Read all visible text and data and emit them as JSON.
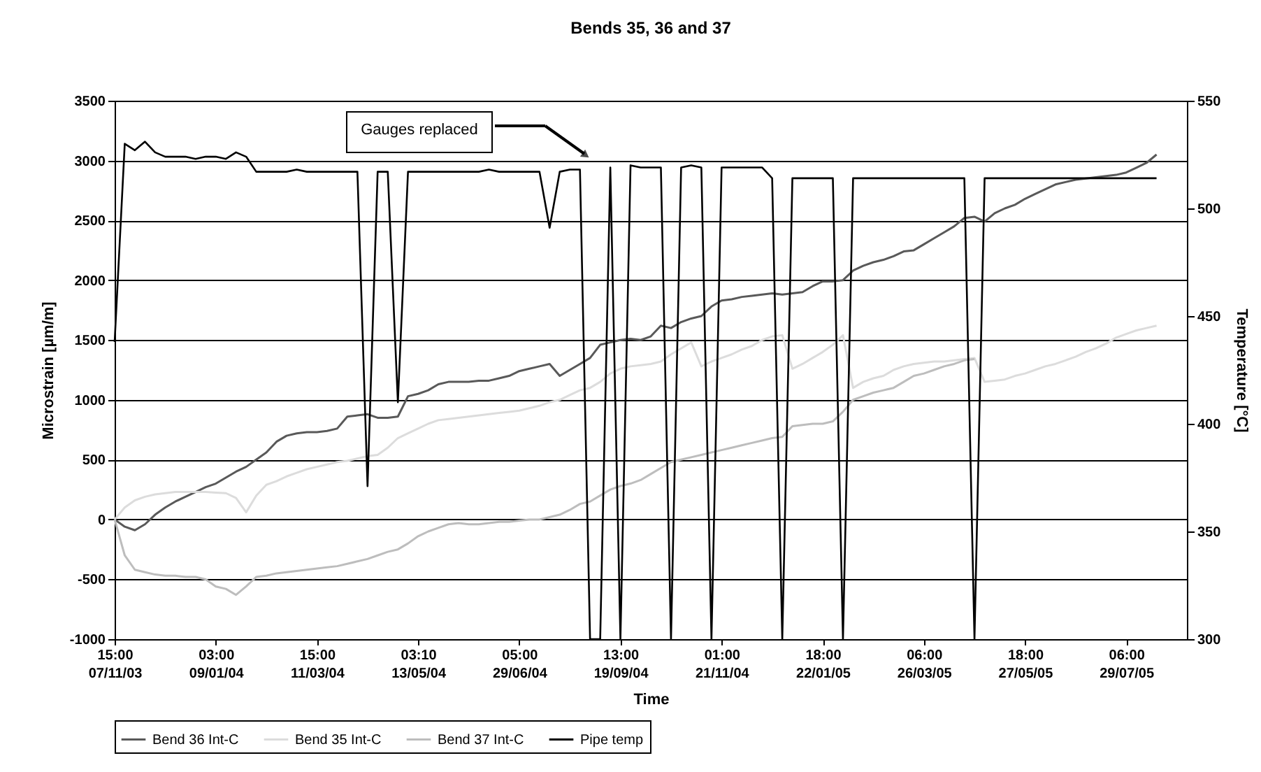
{
  "chart_data": {
    "type": "line",
    "title": "Bends 35, 36 and 37",
    "xlabel": "Time",
    "ylabel": "Microstrain [µm/m]",
    "y2label": "Temperature [°C]",
    "annotations": [
      "Gauges replaced"
    ],
    "categories": [
      "15:00 07/11/03",
      null,
      null,
      null,
      null,
      null,
      null,
      null,
      null,
      null,
      "03:00 09/01/04",
      null,
      null,
      null,
      null,
      null,
      null,
      null,
      null,
      null,
      "15:00 11/03/04",
      null,
      null,
      null,
      null,
      null,
      null,
      null,
      null,
      null,
      "03:10 13/05/04",
      null,
      null,
      null,
      null,
      null,
      null,
      null,
      null,
      null,
      "05:00 29/06/04",
      null,
      null,
      null,
      null,
      null,
      null,
      null,
      null,
      null,
      "13:00 19/09/04",
      null,
      null,
      null,
      null,
      null,
      null,
      null,
      null,
      null,
      "01:00 21/11/04",
      null,
      null,
      null,
      null,
      null,
      null,
      null,
      null,
      null,
      "18:00 22/01/05",
      null,
      null,
      null,
      null,
      null,
      null,
      null,
      null,
      null,
      "06:00 26/03/05",
      null,
      null,
      null,
      null,
      null,
      null,
      null,
      null,
      null,
      "18:00 27/05/05",
      null,
      null,
      null,
      null,
      null,
      null,
      null,
      null,
      null,
      "06:00 29/07/05",
      null,
      null,
      null,
      null,
      null,
      null
    ],
    "series": [
      {
        "name": "Bend 36 Int-C",
        "color": "#595959",
        "values": [
          0,
          -60,
          -90,
          -40,
          40,
          100,
          150,
          190,
          230,
          270,
          300,
          350,
          400,
          440,
          500,
          560,
          650,
          700,
          720,
          730,
          730,
          740,
          760,
          860,
          870,
          880,
          850,
          850,
          860,
          1030,
          1050,
          1080,
          1130,
          1150,
          1150,
          1150,
          1160,
          1160,
          1180,
          1200,
          1240,
          1260,
          1280,
          1300,
          1200,
          1250,
          1300,
          1350,
          1460,
          1480,
          1500,
          1510,
          1500,
          1530,
          1620,
          1600,
          1650,
          1680,
          1700,
          1780,
          1830,
          1840,
          1860,
          1870,
          1880,
          1890,
          1880,
          1890,
          1900,
          1950,
          1990,
          1990,
          2000,
          2080,
          2120,
          2150,
          2170,
          2200,
          2240,
          2250,
          2300,
          2350,
          2400,
          2450,
          2520,
          2530,
          2490,
          2560,
          2600,
          2630,
          2680,
          2720,
          2760,
          2800,
          2820,
          2840,
          2850,
          2860,
          2870,
          2880,
          2900,
          2940,
          2980,
          3050,
          null,
          null,
          null
        ]
      },
      {
        "name": "Bend 35 Int-C",
        "color": "#dcdcdc",
        "values": [
          0,
          100,
          160,
          190,
          210,
          220,
          230,
          230,
          230,
          230,
          225,
          220,
          180,
          60,
          200,
          290,
          320,
          360,
          390,
          420,
          440,
          460,
          480,
          490,
          510,
          530,
          540,
          600,
          680,
          720,
          760,
          800,
          830,
          840,
          850,
          860,
          870,
          880,
          890,
          900,
          910,
          930,
          950,
          980,
          1000,
          1040,
          1080,
          1100,
          1150,
          1220,
          1260,
          1280,
          1290,
          1300,
          1320,
          1380,
          1430,
          1480,
          1280,
          1320,
          1350,
          1380,
          1420,
          1450,
          1500,
          1530,
          1540,
          1260,
          1300,
          1350,
          1400,
          1460,
          1540,
          1100,
          1150,
          1180,
          1200,
          1250,
          1280,
          1300,
          1310,
          1320,
          1320,
          1330,
          1340,
          1350,
          1150,
          1160,
          1170,
          1200,
          1220,
          1250,
          1280,
          1300,
          1330,
          1360,
          1400,
          1430,
          1470,
          1520,
          1550,
          1580,
          1600,
          1620,
          null,
          null,
          null
        ]
      },
      {
        "name": "Bend 37 Int-C",
        "color": "#bdbdbd",
        "values": [
          0,
          -300,
          -420,
          -440,
          -460,
          -470,
          -470,
          -480,
          -480,
          -500,
          -560,
          -580,
          -630,
          -560,
          -480,
          -470,
          -450,
          -440,
          -430,
          -420,
          -410,
          -400,
          -390,
          -370,
          -350,
          -330,
          -300,
          -270,
          -250,
          -200,
          -140,
          -100,
          -70,
          -40,
          -30,
          -40,
          -40,
          -30,
          -20,
          -20,
          -10,
          0,
          0,
          20,
          40,
          80,
          130,
          150,
          200,
          250,
          280,
          300,
          330,
          380,
          430,
          480,
          500,
          520,
          540,
          560,
          580,
          600,
          620,
          640,
          660,
          680,
          690,
          780,
          790,
          800,
          800,
          820,
          900,
          1000,
          1030,
          1060,
          1080,
          1100,
          1150,
          1200,
          1220,
          1250,
          1280,
          1300,
          1330,
          1340,
          null,
          null,
          null,
          null,
          null,
          null,
          null,
          null,
          null,
          null,
          null,
          null,
          null,
          null,
          null,
          null,
          null,
          null,
          null,
          null,
          null
        ]
      },
      {
        "name": "Pipe temp",
        "color": "#000000",
        "axis": "y2",
        "values": [
          438,
          530,
          527,
          531,
          526,
          524,
          524,
          524,
          523,
          524,
          524,
          523,
          526,
          524,
          517,
          517,
          517,
          517,
          518,
          517,
          517,
          517,
          517,
          517,
          517,
          371,
          517,
          517,
          410,
          517,
          517,
          517,
          517,
          517,
          517,
          517,
          517,
          518,
          517,
          517,
          517,
          517,
          517,
          491,
          517,
          518,
          518,
          300,
          300,
          519,
          300,
          520,
          519,
          519,
          519,
          300,
          519,
          520,
          519,
          300,
          519,
          519,
          519,
          519,
          519,
          514,
          300,
          514,
          514,
          514,
          514,
          514,
          300,
          514,
          514,
          514,
          514,
          514,
          514,
          514,
          514,
          514,
          514,
          514,
          514,
          300,
          514,
          514,
          514,
          514,
          514,
          514,
          514,
          514,
          514,
          514,
          514,
          514,
          514,
          514,
          514,
          514,
          514,
          514,
          null,
          null,
          null
        ]
      }
    ],
    "ylim": [
      -1000,
      3500
    ],
    "yticks": [
      -1000,
      -500,
      0,
      500,
      1000,
      1500,
      2000,
      2500,
      3000,
      3500
    ],
    "y2lim": [
      300,
      550
    ],
    "y2ticks": [
      300,
      350,
      400,
      450,
      500,
      550
    ],
    "grid": "y",
    "legend": "bottom"
  }
}
